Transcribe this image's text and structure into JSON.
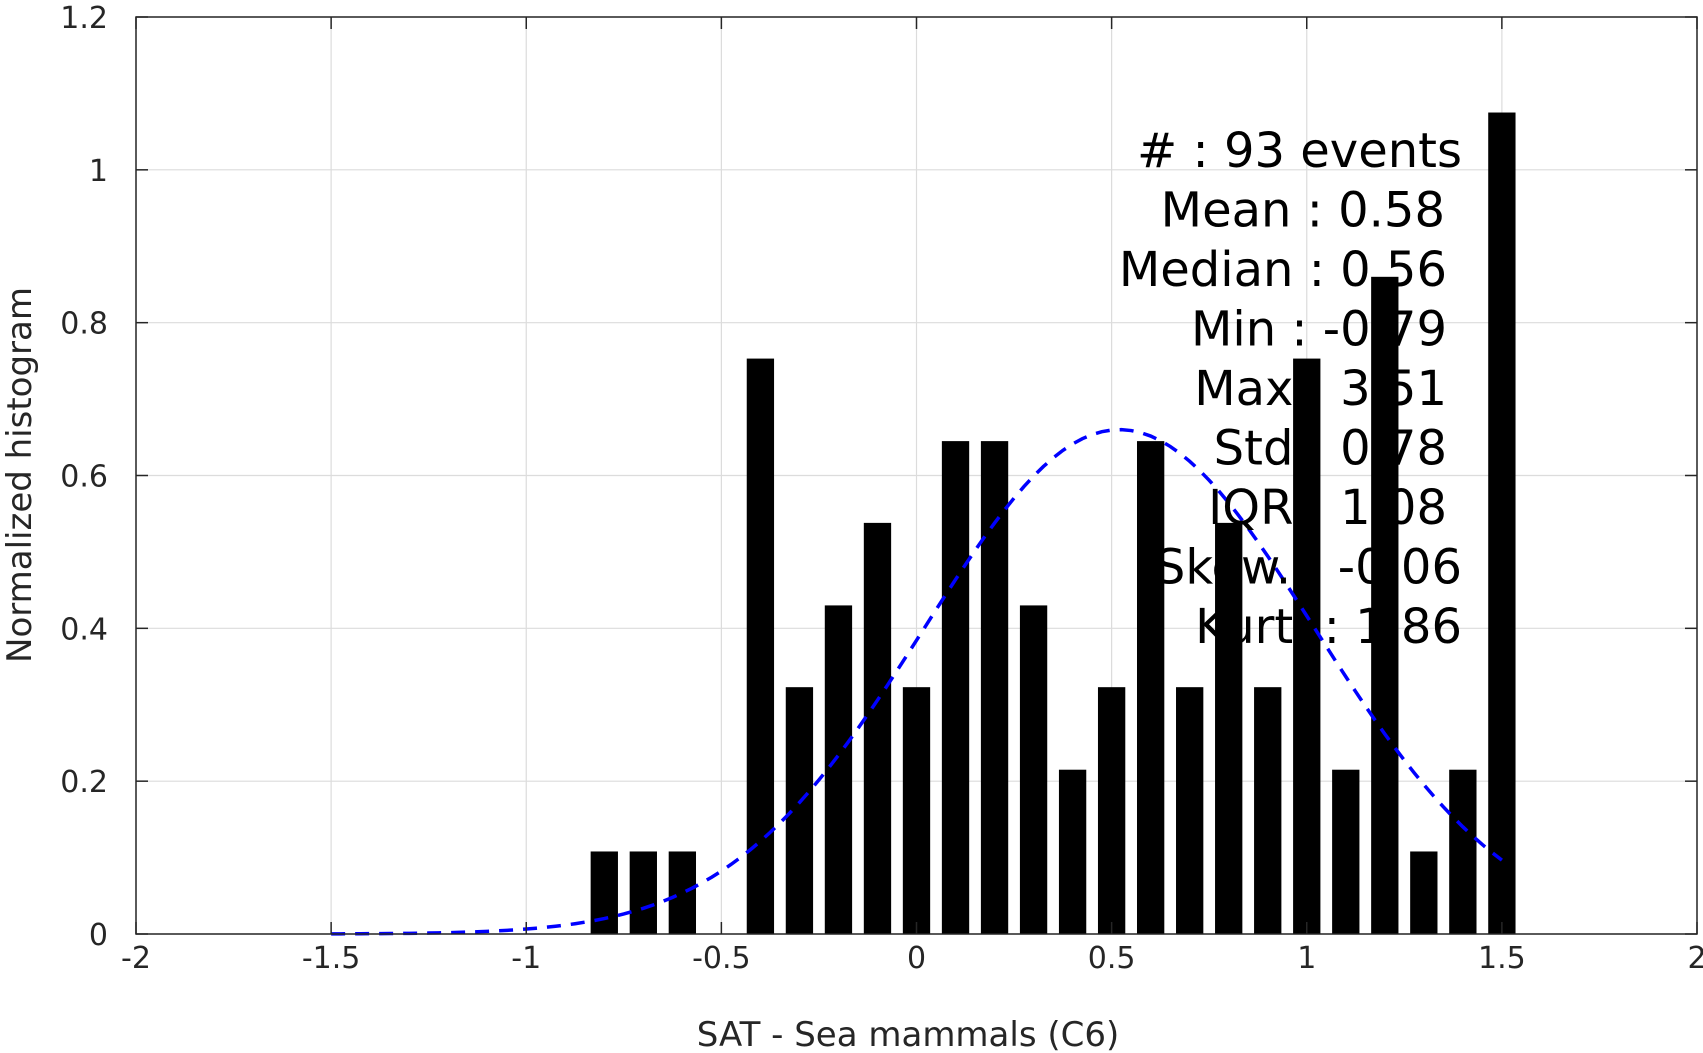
{
  "chart_data": {
    "type": "bar",
    "title": "",
    "xlabel": "SAT - Sea mammals  (C6)",
    "ylabel": "Normalized histogram",
    "xlim": [
      -2,
      2
    ],
    "ylim": [
      0,
      1.2
    ],
    "xticks": [
      "-2",
      "-1.5",
      "-1",
      "-0.5",
      "0",
      "0.5",
      "1",
      "1.5",
      "2"
    ],
    "yticks": [
      "0",
      "0.2",
      "0.4",
      "0.6",
      "0.8",
      "1",
      "1.2"
    ],
    "grid": true,
    "bar_width": 0.07,
    "bar_color": "#000000",
    "bars": {
      "x": [
        -0.8,
        -0.7,
        -0.6,
        -0.4,
        -0.3,
        -0.2,
        -0.1,
        0.0,
        0.1,
        0.2,
        0.3,
        0.4,
        0.5,
        0.6,
        0.7,
        0.8,
        0.9,
        1.0,
        1.1,
        1.2,
        1.3,
        1.4,
        1.5
      ],
      "values": [
        0.108,
        0.108,
        0.108,
        0.753,
        0.323,
        0.43,
        0.538,
        0.323,
        0.645,
        0.645,
        0.43,
        0.215,
        0.323,
        0.645,
        0.323,
        0.538,
        0.323,
        0.753,
        0.215,
        0.86,
        0.108,
        0.215,
        1.075
      ]
    },
    "fit_curve": {
      "style": "dashed",
      "color": "#0000ff",
      "distribution": "normal",
      "mean": 0.52,
      "peak": 0.66,
      "std": 0.5,
      "x_range": [
        -1.5,
        1.5
      ]
    },
    "annotations": [
      "#  : 93 events",
      "Mean : 0.58",
      "Median : 0.56",
      "Min : -0.79",
      "Max : 3.51",
      "Std : 0.78",
      "IQR : 1.08",
      "Skew. : -0.06",
      "Kurt. : 1.86"
    ]
  }
}
